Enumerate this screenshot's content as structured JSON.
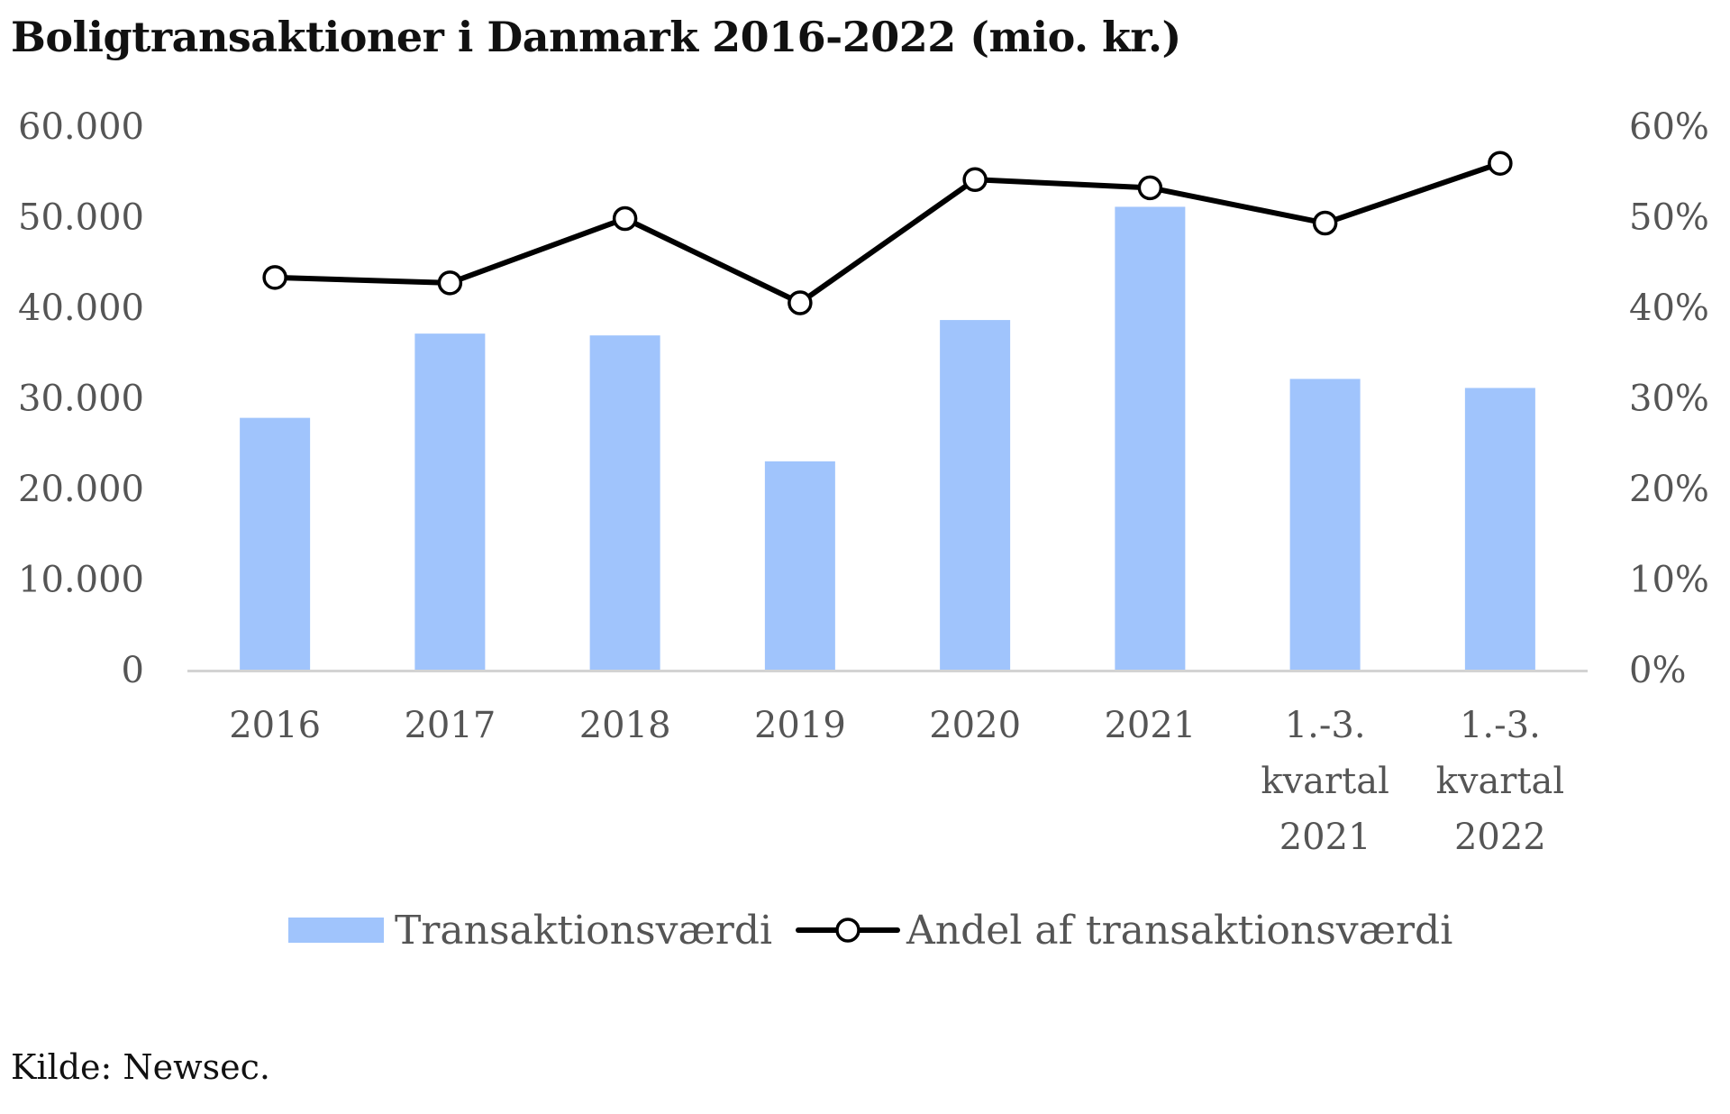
{
  "chart_data": {
    "type": "bar",
    "title": "Boligtransaktioner i Danmark 2016-2022 (mio. kr.)",
    "categories": [
      "2016",
      "2017",
      "2018",
      "2019",
      "2020",
      "2021",
      "1.-3. kvartal 2021",
      "1.-3. kvartal 2022"
    ],
    "series": [
      {
        "name": "Transaktionsværdi",
        "type": "bar",
        "axis": "left",
        "color": "#a0c4fc",
        "values": [
          27800,
          37100,
          36900,
          23000,
          38600,
          51100,
          32100,
          31100
        ]
      },
      {
        "name": "Andel af transaktionsværdi",
        "type": "line",
        "axis": "right",
        "color": "#000000",
        "marker": "open-circle",
        "values": [
          0.433,
          0.427,
          0.498,
          0.405,
          0.541,
          0.532,
          0.493,
          0.559
        ]
      }
    ],
    "y_left": {
      "min": 0,
      "max": 60000,
      "ticks": [
        0,
        10000,
        20000,
        30000,
        40000,
        50000,
        60000
      ],
      "tick_labels": [
        "0",
        "10.000",
        "20.000",
        "30.000",
        "40.000",
        "50.000",
        "60.000"
      ]
    },
    "y_right": {
      "min": 0,
      "max": 0.6,
      "ticks": [
        0,
        0.1,
        0.2,
        0.3,
        0.4,
        0.5,
        0.6
      ],
      "tick_labels": [
        "0%",
        "10%",
        "20%",
        "30%",
        "40%",
        "50%",
        "60%"
      ]
    },
    "xlabel": "",
    "ylabel": "",
    "grid": false,
    "legend_position": "bottom",
    "colors": {
      "bar": "#a0c4fc",
      "line": "#000000",
      "axis": "#d3d3d3",
      "tick_text": "#555555",
      "legend_text": "#555555"
    }
  },
  "source": "Kilde: Newsec."
}
